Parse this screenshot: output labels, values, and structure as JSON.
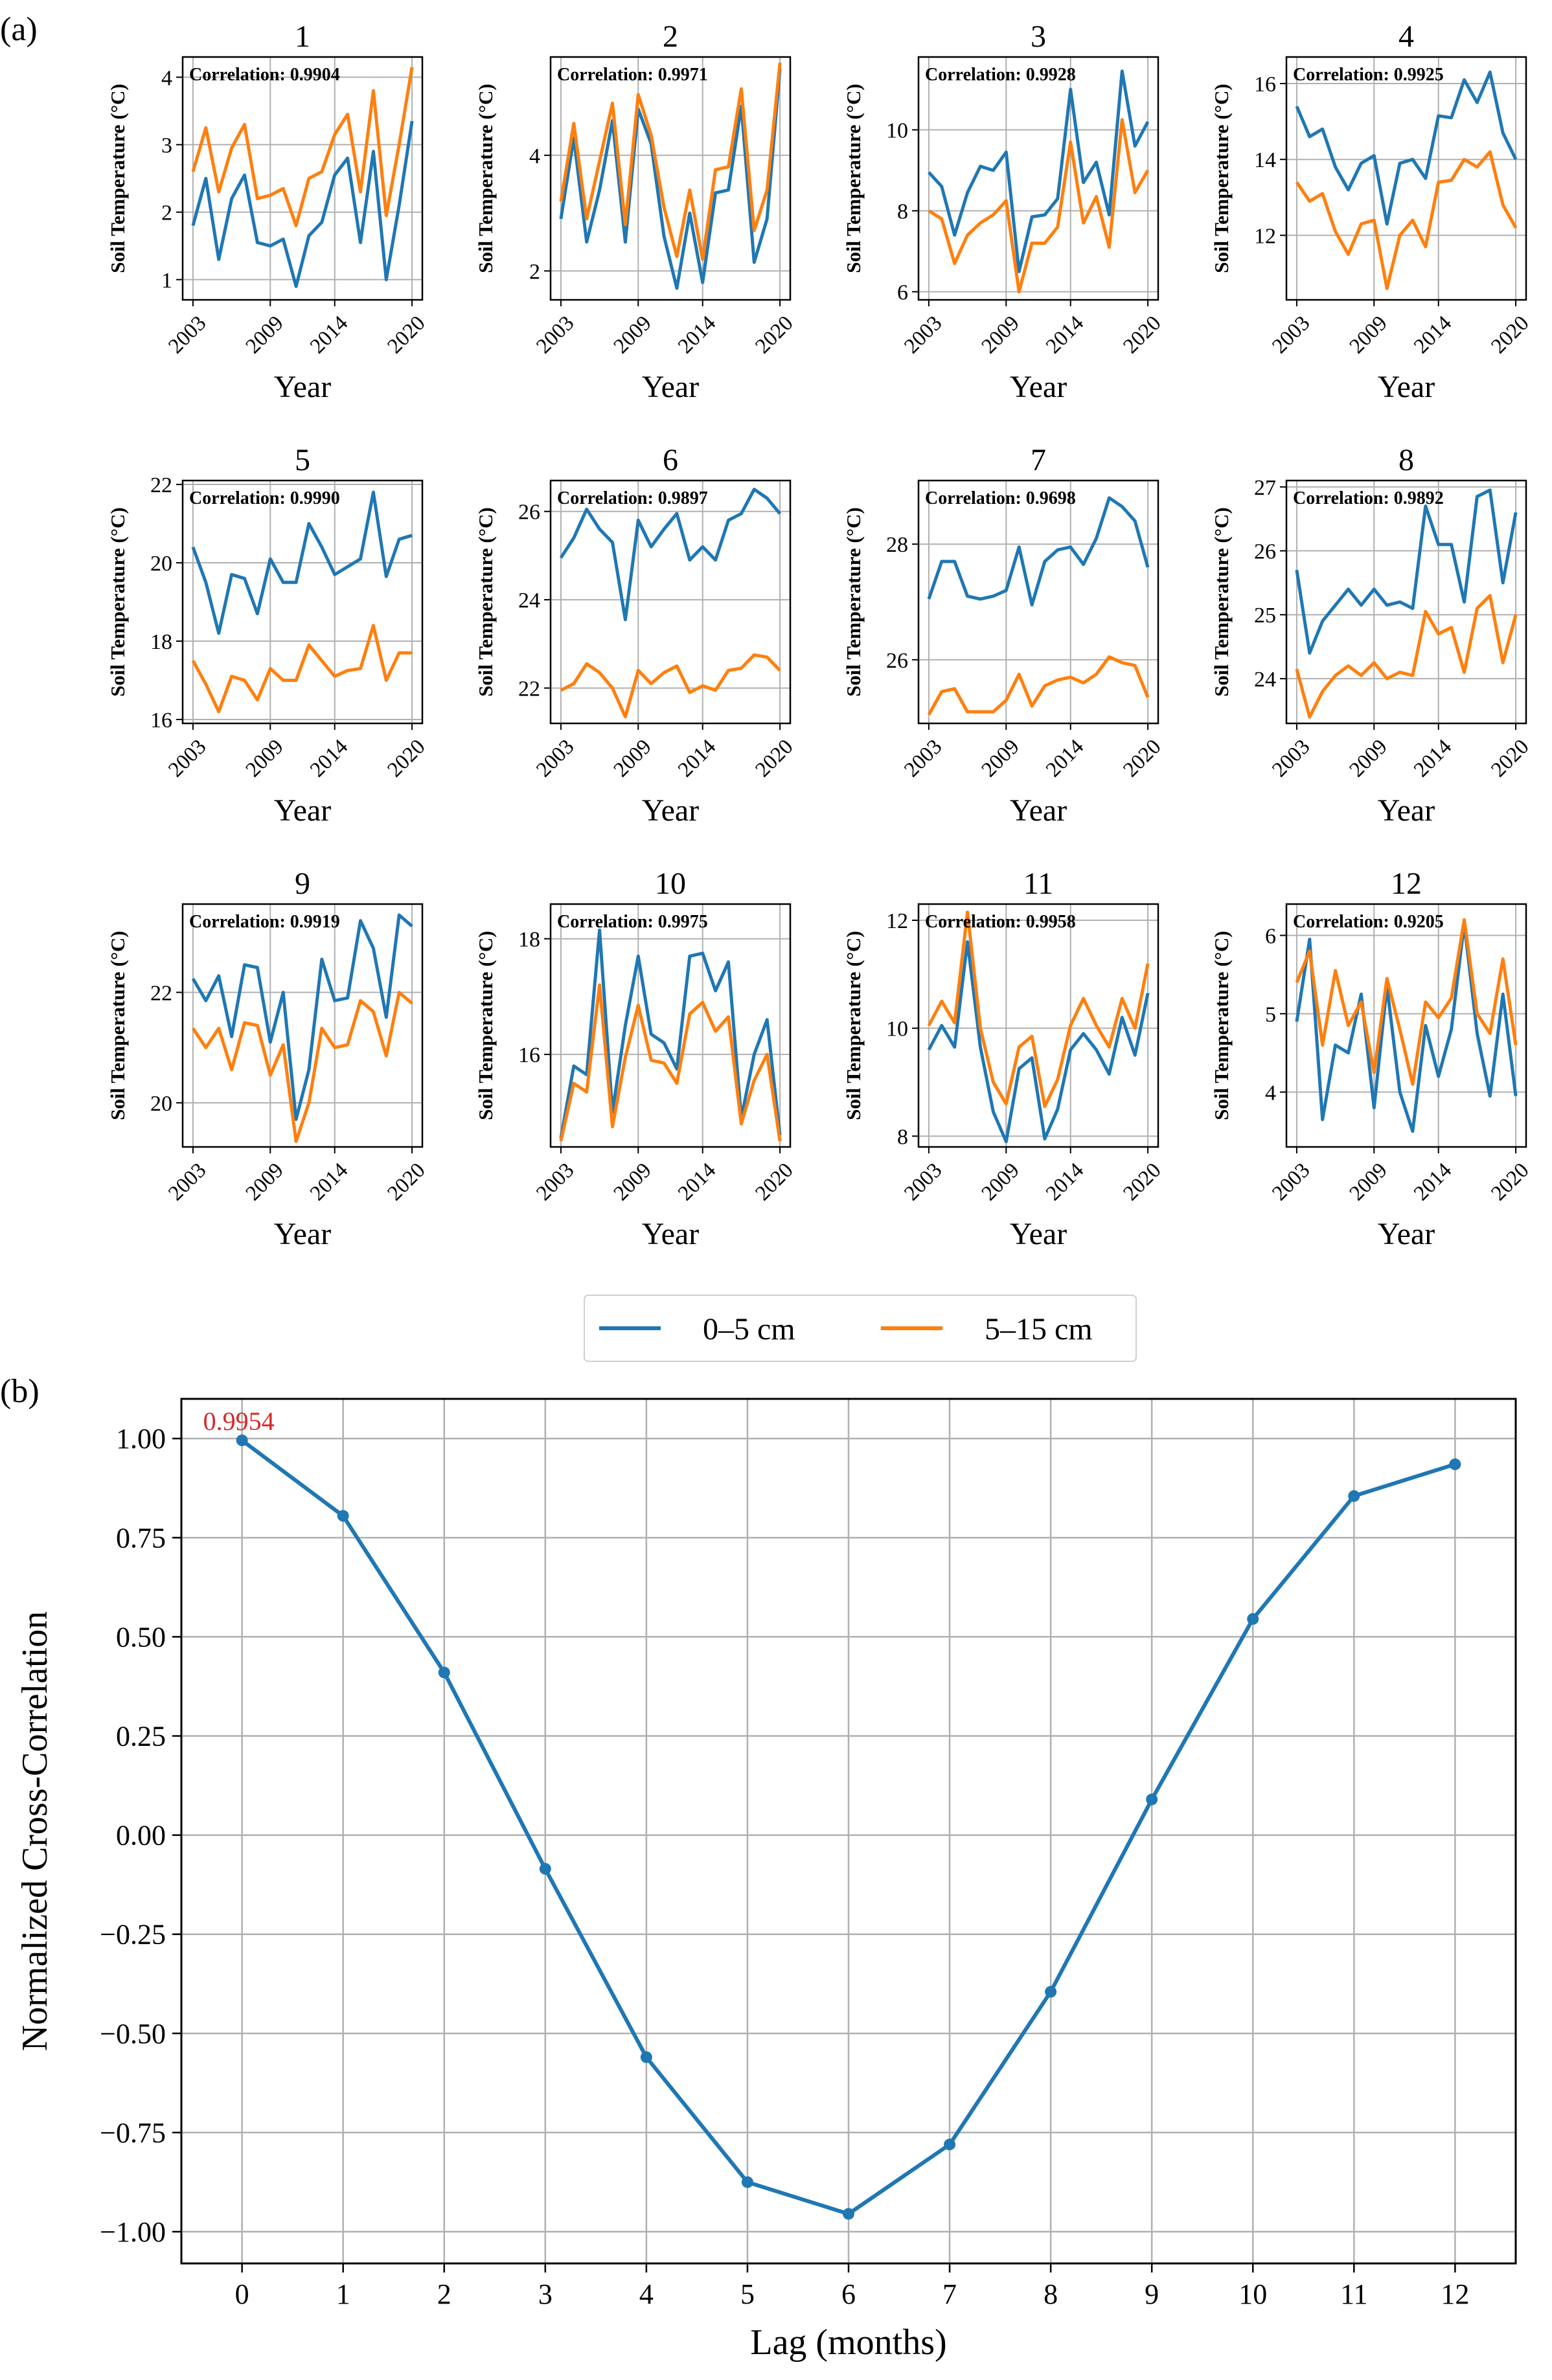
{
  "panel_a_label": "(a)",
  "panel_b_label": "(b)",
  "colors": {
    "series_0_5": "#1f77b4",
    "series_5_15": "#ff7f0e",
    "grid": "#b0b0b0",
    "peak_label": "#d62728"
  },
  "legend": {
    "items": [
      "0–5 cm",
      "5–15 cm"
    ]
  },
  "chart_data": [
    {
      "type": "line",
      "panel": "a",
      "subplots": [
        {
          "title": "1",
          "correlation_text": "Correlation: 0.9904",
          "ylim": [
            0.7,
            4.3
          ],
          "yticks": [
            1,
            2,
            3,
            4
          ],
          "series": [
            {
              "name": "0–5 cm",
              "values": [
                1.8,
                2.5,
                1.3,
                2.2,
                2.55,
                1.55,
                1.5,
                1.6,
                0.9,
                1.65,
                1.85,
                2.55,
                2.8,
                1.55,
                2.9,
                1.0,
                2.1,
                3.35
              ]
            },
            {
              "name": "5–15 cm",
              "values": [
                2.6,
                3.25,
                2.3,
                2.95,
                3.3,
                2.2,
                2.25,
                2.35,
                1.8,
                2.5,
                2.6,
                3.15,
                3.45,
                2.3,
                3.8,
                1.95,
                3.0,
                4.15
              ]
            }
          ]
        },
        {
          "title": "2",
          "correlation_text": "Correlation: 0.9971",
          "ylim": [
            1.5,
            5.7
          ],
          "yticks": [
            2,
            4
          ],
          "series": [
            {
              "name": "0–5 cm",
              "values": [
                2.9,
                4.3,
                2.5,
                3.4,
                4.6,
                2.5,
                4.8,
                4.2,
                2.6,
                1.7,
                3.0,
                1.8,
                3.35,
                3.4,
                4.85,
                2.15,
                2.9,
                5.5
              ]
            },
            {
              "name": "5–15 cm",
              "values": [
                3.2,
                4.55,
                2.9,
                3.9,
                4.9,
                2.8,
                5.05,
                4.35,
                3.1,
                2.25,
                3.4,
                2.2,
                3.75,
                3.8,
                5.15,
                2.7,
                3.4,
                5.6
              ]
            }
          ]
        },
        {
          "title": "3",
          "correlation_text": "Correlation: 0.9928",
          "ylim": [
            5.8,
            11.8
          ],
          "yticks": [
            6,
            8,
            10
          ],
          "series": [
            {
              "name": "0–5 cm",
              "values": [
                8.95,
                8.6,
                7.4,
                8.45,
                9.1,
                9.0,
                9.45,
                6.5,
                7.85,
                7.9,
                8.3,
                11.0,
                8.7,
                9.2,
                7.9,
                11.45,
                9.6,
                10.2
              ]
            },
            {
              "name": "5–15 cm",
              "values": [
                8.0,
                7.8,
                6.7,
                7.4,
                7.7,
                7.9,
                8.25,
                6.0,
                7.2,
                7.2,
                7.6,
                9.7,
                7.7,
                8.35,
                7.1,
                10.25,
                8.45,
                9.0
              ]
            }
          ]
        },
        {
          "title": "4",
          "correlation_text": "Correlation: 0.9925",
          "ylim": [
            10.3,
            16.7
          ],
          "yticks": [
            12,
            14,
            16
          ],
          "series": [
            {
              "name": "0–5 cm",
              "values": [
                15.4,
                14.6,
                14.8,
                13.8,
                13.2,
                13.9,
                14.1,
                12.3,
                13.9,
                14.0,
                13.5,
                15.15,
                15.1,
                16.1,
                15.5,
                16.3,
                14.7,
                14.0
              ]
            },
            {
              "name": "5–15 cm",
              "values": [
                13.4,
                12.9,
                13.1,
                12.1,
                11.5,
                12.3,
                12.4,
                10.6,
                12.0,
                12.4,
                11.7,
                13.4,
                13.45,
                14.0,
                13.8,
                14.2,
                12.8,
                12.2
              ]
            }
          ]
        },
        {
          "title": "5",
          "correlation_text": "Correlation: 0.9990",
          "ylim": [
            15.9,
            22.1
          ],
          "yticks": [
            16,
            18,
            20,
            22
          ],
          "series": [
            {
              "name": "0–5 cm",
              "values": [
                20.4,
                19.5,
                18.2,
                19.7,
                19.6,
                18.7,
                20.1,
                19.5,
                19.5,
                21.0,
                20.4,
                19.7,
                19.9,
                20.1,
                21.8,
                19.65,
                20.6,
                20.7
              ]
            },
            {
              "name": "5–15 cm",
              "values": [
                17.5,
                16.9,
                16.2,
                17.1,
                17.0,
                16.5,
                17.3,
                17.0,
                17.0,
                17.9,
                17.5,
                17.1,
                17.25,
                17.3,
                18.4,
                17.0,
                17.7,
                17.7
              ]
            }
          ]
        },
        {
          "title": "6",
          "correlation_text": "Correlation: 0.9897",
          "ylim": [
            21.2,
            26.7
          ],
          "yticks": [
            22,
            24,
            26
          ],
          "series": [
            {
              "name": "0–5 cm",
              "values": [
                24.95,
                25.4,
                26.05,
                25.6,
                25.3,
                23.55,
                25.8,
                25.2,
                25.6,
                25.95,
                24.9,
                25.2,
                24.9,
                25.8,
                25.95,
                26.5,
                26.3,
                25.95
              ]
            },
            {
              "name": "5–15 cm",
              "values": [
                21.95,
                22.1,
                22.55,
                22.35,
                22.0,
                21.35,
                22.4,
                22.1,
                22.35,
                22.5,
                21.9,
                22.05,
                21.95,
                22.4,
                22.45,
                22.75,
                22.7,
                22.4
              ]
            }
          ]
        },
        {
          "title": "7",
          "correlation_text": "Correlation: 0.9698",
          "ylim": [
            24.9,
            29.1
          ],
          "yticks": [
            26,
            28
          ],
          "series": [
            {
              "name": "0–5 cm",
              "values": [
                27.05,
                27.7,
                27.7,
                27.1,
                27.05,
                27.1,
                27.2,
                27.95,
                26.95,
                27.7,
                27.9,
                27.95,
                27.65,
                28.1,
                28.8,
                28.65,
                28.4,
                27.6
              ]
            },
            {
              "name": "5–15 cm",
              "values": [
                25.05,
                25.45,
                25.5,
                25.1,
                25.1,
                25.1,
                25.3,
                25.75,
                25.2,
                25.55,
                25.65,
                25.7,
                25.6,
                25.75,
                26.05,
                25.95,
                25.9,
                25.35
              ]
            }
          ]
        },
        {
          "title": "8",
          "correlation_text": "Correlation: 0.9892",
          "ylim": [
            23.3,
            27.1
          ],
          "yticks": [
            24,
            25,
            26,
            27
          ],
          "series": [
            {
              "name": "0–5 cm",
              "values": [
                25.7,
                24.4,
                24.9,
                25.15,
                25.4,
                25.15,
                25.4,
                25.15,
                25.2,
                25.1,
                26.7,
                26.1,
                26.1,
                25.2,
                26.85,
                26.95,
                25.5,
                26.6
              ]
            },
            {
              "name": "5–15 cm",
              "values": [
                24.15,
                23.4,
                23.8,
                24.05,
                24.2,
                24.05,
                24.25,
                24.0,
                24.1,
                24.05,
                25.05,
                24.7,
                24.8,
                24.1,
                25.1,
                25.3,
                24.25,
                25.0
              ]
            }
          ]
        },
        {
          "title": "9",
          "correlation_text": "Correlation: 0.9919",
          "ylim": [
            19.2,
            23.6
          ],
          "yticks": [
            20,
            22
          ],
          "series": [
            {
              "name": "0–5 cm",
              "values": [
                22.25,
                21.85,
                22.3,
                21.2,
                22.5,
                22.45,
                21.1,
                22.0,
                19.7,
                20.6,
                22.6,
                21.85,
                21.9,
                23.3,
                22.8,
                21.55,
                23.4,
                23.2
              ]
            },
            {
              "name": "5–15 cm",
              "values": [
                21.35,
                21.0,
                21.35,
                20.6,
                21.45,
                21.4,
                20.5,
                21.05,
                19.3,
                20.0,
                21.35,
                21.0,
                21.05,
                21.85,
                21.65,
                20.85,
                22.0,
                21.8
              ]
            }
          ]
        },
        {
          "title": "10",
          "correlation_text": "Correlation: 0.9975",
          "ylim": [
            14.4,
            18.6
          ],
          "yticks": [
            16,
            18
          ],
          "series": [
            {
              "name": "0–5 cm",
              "values": [
                14.55,
                15.8,
                15.65,
                18.15,
                15.0,
                16.5,
                17.7,
                16.35,
                16.2,
                15.75,
                17.7,
                17.75,
                17.1,
                17.6,
                14.9,
                16.0,
                16.6,
                14.6
              ]
            },
            {
              "name": "5–15 cm",
              "values": [
                14.5,
                15.5,
                15.35,
                17.2,
                14.75,
                15.95,
                16.85,
                15.9,
                15.85,
                15.5,
                16.7,
                16.9,
                16.4,
                16.65,
                14.8,
                15.55,
                16.0,
                14.5
              ]
            }
          ]
        },
        {
          "title": "11",
          "correlation_text": "Correlation: 0.9958",
          "ylim": [
            7.8,
            12.3
          ],
          "yticks": [
            8,
            10,
            12
          ],
          "series": [
            {
              "name": "0–5 cm",
              "values": [
                9.6,
                10.05,
                9.65,
                11.6,
                9.65,
                8.45,
                7.9,
                9.25,
                9.45,
                7.95,
                8.5,
                9.6,
                9.9,
                9.6,
                9.15,
                10.2,
                9.5,
                10.65
              ]
            },
            {
              "name": "5–15 cm",
              "values": [
                10.05,
                10.5,
                10.1,
                12.15,
                10.0,
                9.0,
                8.6,
                9.65,
                9.85,
                8.55,
                9.05,
                10.05,
                10.55,
                10.05,
                9.65,
                10.55,
                10.0,
                11.2
              ]
            }
          ]
        },
        {
          "title": "12",
          "correlation_text": "Correlation: 0.9205",
          "ylim": [
            3.3,
            6.4
          ],
          "yticks": [
            4,
            5,
            6
          ],
          "series": [
            {
              "name": "0–5 cm",
              "values": [
                4.9,
                5.95,
                3.65,
                4.6,
                4.5,
                5.25,
                3.8,
                5.35,
                4.0,
                3.5,
                4.85,
                4.2,
                4.8,
                6.15,
                4.75,
                3.95,
                5.25,
                3.95
              ]
            },
            {
              "name": "5–15 cm",
              "values": [
                5.4,
                5.8,
                4.6,
                5.55,
                4.85,
                5.15,
                4.25,
                5.45,
                4.8,
                4.1,
                5.15,
                4.95,
                5.2,
                6.2,
                5.0,
                4.75,
                5.7,
                4.6
              ]
            }
          ]
        }
      ],
      "x": [
        2003,
        2004,
        2005,
        2006,
        2007,
        2008,
        2009,
        2010,
        2011,
        2012,
        2013,
        2014,
        2015,
        2016,
        2017,
        2018,
        2019,
        2020
      ],
      "xticks": [
        "2003",
        "2009",
        "2014",
        "2020"
      ],
      "xlabel": "Year",
      "ylabel": "Soil Temperature (°C)",
      "grid": true,
      "legend": "bottom-center"
    },
    {
      "type": "line",
      "panel": "b",
      "x": [
        0,
        1,
        2,
        3,
        4,
        5,
        6,
        7,
        8,
        9,
        10,
        11,
        12
      ],
      "values": [
        0.9954,
        0.805,
        0.41,
        -0.085,
        -0.56,
        -0.875,
        -0.955,
        -0.78,
        -0.395,
        0.09,
        0.545,
        0.855,
        0.935
      ],
      "xticks": [
        "0",
        "1",
        "2",
        "3",
        "4",
        "5",
        "6",
        "7",
        "8",
        "9",
        "10",
        "11",
        "12"
      ],
      "yticks": [
        "−1.00",
        "−0.75",
        "−0.50",
        "−0.25",
        "0.00",
        "0.25",
        "0.50",
        "0.75",
        "1.00"
      ],
      "ylim": [
        -1.08,
        1.1
      ],
      "xlim": [
        -0.6,
        12.6
      ],
      "xlabel": "Lag (months)",
      "ylabel": "Normalized Cross-Correlation",
      "annotation": "0.9954",
      "grid": true
    }
  ]
}
